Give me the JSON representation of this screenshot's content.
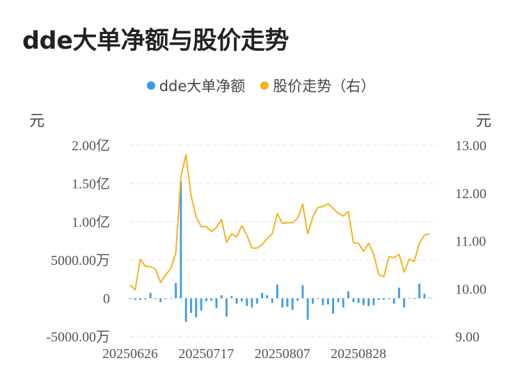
{
  "title": "dde大单净额与股价走势",
  "legend": {
    "dde_label": "dde大单净额",
    "price_label": "股价走势（右）"
  },
  "units": {
    "left": "元",
    "right": "元"
  },
  "colors": {
    "bar": "#3b9ae8",
    "line": "#f5b21f",
    "grid": "#e2e2e2"
  },
  "chart_data": {
    "type": "bar+line",
    "left_axis": {
      "ylim": [
        -50000000,
        200000000
      ],
      "tick_labels": [
        "2.00亿",
        "1.50亿",
        "1.00亿",
        "5000.00万",
        "0",
        "-5000.00万"
      ]
    },
    "right_axis": {
      "ylim": [
        9.0,
        13.0
      ],
      "tick_labels": [
        "13.00",
        "12.00",
        "11.00",
        "10.00",
        "9.00"
      ]
    },
    "x_tick_labels": [
      "20250626",
      "20250717",
      "20250807",
      "20250828"
    ],
    "x_tick_indices": [
      0,
      15,
      30,
      45
    ],
    "grid": true,
    "legend_position": "top",
    "series": [
      {
        "name": "dde大单净额",
        "type": "bar",
        "axis": "left",
        "values": [
          -1000000,
          -2000000,
          -2000000,
          -1500000,
          7000000,
          -1000000,
          -5000000,
          -1000000,
          -500000,
          20000000,
          153000000,
          -31000000,
          -19000000,
          -25000000,
          -16000000,
          -4000000,
          -3000000,
          -13000000,
          4000000,
          -24000000,
          3000000,
          -7000000,
          -4000000,
          -10000000,
          -12000000,
          -7000000,
          7000000,
          4000000,
          -6000000,
          18000000,
          -12000000,
          -11000000,
          -15000000,
          -3000000,
          17000000,
          -28000000,
          -7000000,
          -1000000,
          -9000000,
          -8000000,
          -20000000,
          -5000000,
          -12000000,
          9000000,
          -5000000,
          -6000000,
          -9000000,
          -10000000,
          -9000000,
          -2000000,
          -2000000,
          -1000000,
          -7000000,
          14000000,
          -12000000,
          500000,
          -1000000,
          19000000,
          6000000,
          500000
        ]
      },
      {
        "name": "股价走势",
        "type": "line",
        "axis": "right",
        "values": [
          10.07,
          9.98,
          10.62,
          10.47,
          10.46,
          10.41,
          10.13,
          10.29,
          10.42,
          10.75,
          12.35,
          12.8,
          11.95,
          11.5,
          11.3,
          11.3,
          11.2,
          11.28,
          11.45,
          10.97,
          11.15,
          11.08,
          11.32,
          11.12,
          10.85,
          10.85,
          10.92,
          11.05,
          11.15,
          11.57,
          11.37,
          11.38,
          11.38,
          11.47,
          11.77,
          11.15,
          11.5,
          11.7,
          11.72,
          11.78,
          11.68,
          11.58,
          11.52,
          11.62,
          10.96,
          10.95,
          10.78,
          10.95,
          10.72,
          10.3,
          10.25,
          10.67,
          10.65,
          10.72,
          10.35,
          10.62,
          10.57,
          10.95,
          11.12,
          11.15
        ]
      }
    ]
  }
}
